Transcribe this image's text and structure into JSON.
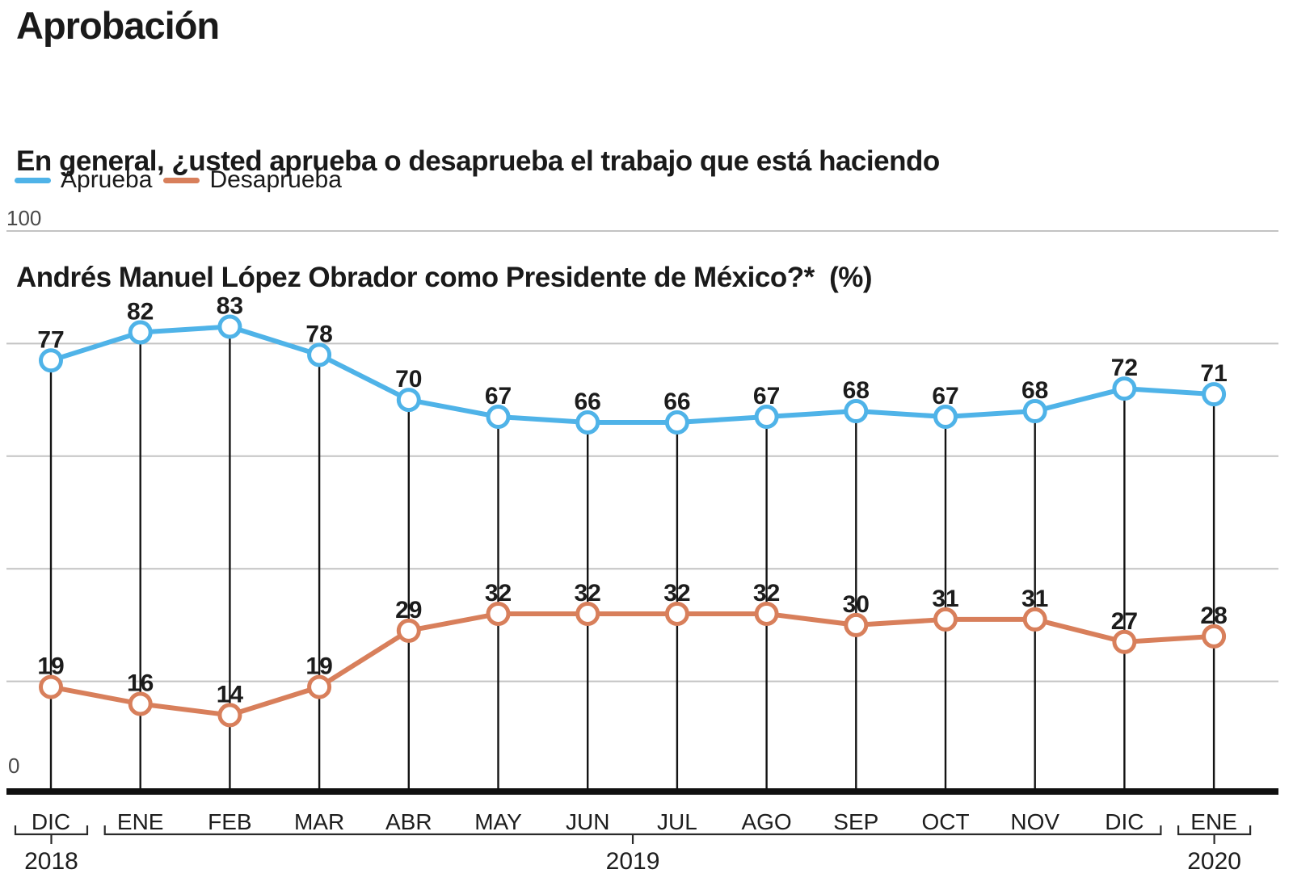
{
  "header": {
    "title": "Aprobación",
    "subtitle_line1": "En general, ¿usted aprueba o desaprueba el trabajo que está haciendo",
    "subtitle_line2": "Andrés Manuel López Obrador como Presidente de México?*  (%)"
  },
  "legend": [
    {
      "label": "Aprueba",
      "color": "#4FB3E8"
    },
    {
      "label": "Desaprueba",
      "color": "#D87F5B"
    }
  ],
  "axis": {
    "y_top_label": "100",
    "y_bottom_label": "0"
  },
  "chart_data": {
    "type": "line",
    "title": "Aprobación",
    "subtitle": "En general, ¿usted aprueba o desaprueba el trabajo que está haciendo Andrés Manuel López Obrador como Presidente de México?* (%)",
    "categories": [
      "DIC",
      "ENE",
      "FEB",
      "MAR",
      "ABR",
      "MAY",
      "JUN",
      "JUL",
      "AGO",
      "SEP",
      "OCT",
      "NOV",
      "DIC",
      "ENE"
    ],
    "year_groups": [
      {
        "label": "2018",
        "from": 0,
        "to": 0
      },
      {
        "label": "2019",
        "from": 1,
        "to": 12
      },
      {
        "label": "2020",
        "from": 13,
        "to": 13
      }
    ],
    "series": [
      {
        "name": "Aprueba",
        "color": "#4FB3E8",
        "values": [
          77,
          82,
          83,
          78,
          70,
          67,
          66,
          66,
          67,
          68,
          67,
          68,
          72,
          71
        ]
      },
      {
        "name": "Desaprueba",
        "color": "#D87F5B",
        "values": [
          19,
          16,
          14,
          19,
          29,
          32,
          32,
          32,
          32,
          30,
          31,
          31,
          27,
          28
        ]
      }
    ],
    "ylim": [
      0,
      100
    ],
    "labeled_yticks": [
      "100",
      "0"
    ],
    "gridline_values": [
      20,
      40,
      60,
      80,
      100
    ],
    "grid": true,
    "legend_position": "top-left",
    "point_labels": true,
    "marker": "open-circle",
    "drop_lines": true,
    "colors": {
      "gridline": "#c3c3c3",
      "axis": "#101010",
      "drop_line": "#141414",
      "value_label": "#1c1c1c"
    }
  }
}
